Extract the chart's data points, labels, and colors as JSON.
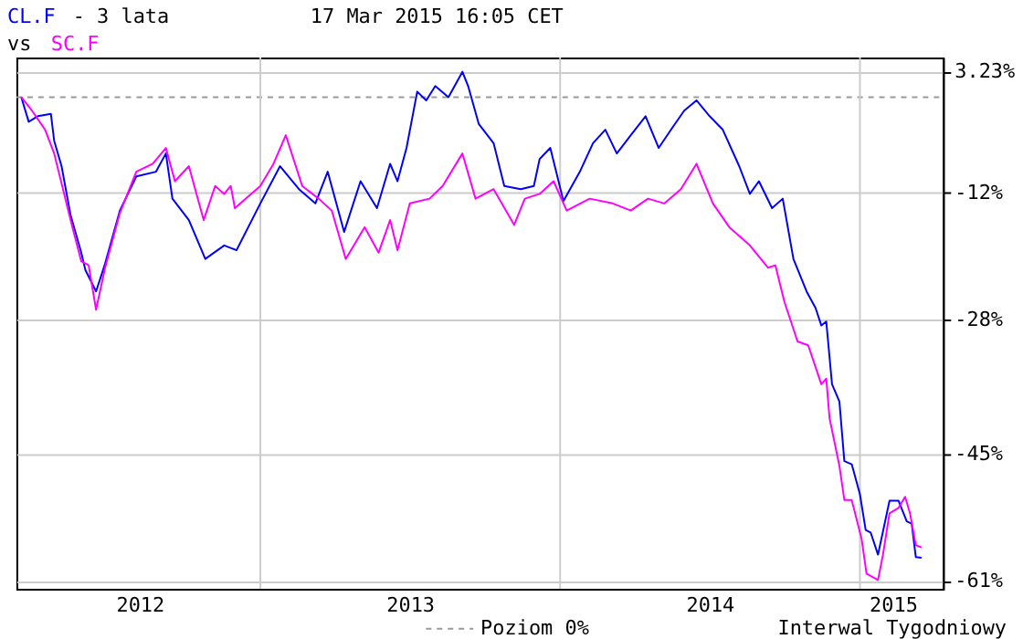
{
  "chart_data": {
    "type": "line",
    "title": "- 3 lata",
    "annotations": [
      "17 Mar 2015 16:05 CET",
      "vs",
      "Interwal Tygodniowy"
    ],
    "xlim": [
      "2012-03-10",
      "2015-04-12"
    ],
    "xticks": [
      {
        "value": "2012-08-07",
        "label": "2012"
      },
      {
        "value": "2013-07-02",
        "label": "2013"
      },
      {
        "value": "2014-07-02",
        "label": "2014"
      },
      {
        "value": "2015-02-10",
        "label": "2015"
      }
    ],
    "ylim": [
      -62,
      5
    ],
    "yticks": [
      {
        "value": 3.23,
        "label": "3.23%"
      },
      {
        "value": -12,
        "label": "-12%"
      },
      {
        "value": -28,
        "label": "-28%"
      },
      {
        "value": -45,
        "label": "-45%"
      },
      {
        "value": -61,
        "label": "-61%"
      }
    ],
    "grid": "y",
    "legend": "bottom",
    "line_style": "solid",
    "ref_lines": [
      {
        "axis": "y",
        "value": 0,
        "label": "Poziom 0%",
        "color": "#999999",
        "line_style": "dashed"
      },
      {
        "axis": "x",
        "value": "2013-01-01",
        "label": null,
        "color": "#cccccc"
      },
      {
        "axis": "x",
        "value": "2014-01-01",
        "label": null,
        "color": "#cccccc"
      },
      {
        "axis": "x",
        "value": "2015-01-01",
        "label": null,
        "color": "#cccccc"
      }
    ],
    "series": [
      {
        "name": "CL.F",
        "color": "#0000ff",
        "x": [
          "2012-03-16",
          "2012-03-25",
          "2012-04-05",
          "2012-04-21",
          "2012-04-25",
          "2012-05-04",
          "2012-05-15",
          "2012-05-28",
          "2012-06-02",
          "2012-06-15",
          "2012-06-26",
          "2012-07-14",
          "2012-08-03",
          "2012-08-27",
          "2012-09-08",
          "2012-09-16",
          "2012-10-06",
          "2012-10-26",
          "2012-11-18",
          "2012-12-03",
          "2013-01-01",
          "2013-01-25",
          "2013-02-17",
          "2013-03-09",
          "2013-03-24",
          "2013-04-13",
          "2013-05-03",
          "2013-05-23",
          "2013-06-08",
          "2013-06-17",
          "2013-06-28",
          "2013-07-11",
          "2013-07-22",
          "2013-08-02",
          "2013-08-18",
          "2013-09-04",
          "2013-09-11",
          "2013-09-24",
          "2013-10-12",
          "2013-10-25",
          "2013-11-14",
          "2013-11-30",
          "2013-12-07",
          "2013-12-20",
          "2014-01-05",
          "2014-01-25",
          "2014-02-10",
          "2014-02-25",
          "2014-03-11",
          "2014-03-28",
          "2014-04-15",
          "2014-05-01",
          "2014-05-16",
          "2014-06-01",
          "2014-06-16",
          "2014-07-02",
          "2014-07-18",
          "2014-08-07",
          "2014-08-20",
          "2014-08-31",
          "2014-09-16",
          "2014-09-29",
          "2014-10-12",
          "2014-10-28",
          "2014-11-08",
          "2014-11-15",
          "2014-11-21",
          "2014-11-28",
          "2014-12-07",
          "2014-12-13",
          "2014-12-22",
          "2015-01-01",
          "2015-01-08",
          "2015-01-14",
          "2015-01-23",
          "2015-02-06",
          "2015-02-17",
          "2015-02-27",
          "2015-03-05",
          "2015-03-10",
          "2015-03-17"
        ],
        "values": [
          0,
          -3.1,
          -2.4,
          -2.1,
          -5.5,
          -8.7,
          -14.9,
          -19.6,
          -21.8,
          -24.5,
          -21.0,
          -14.3,
          -10.0,
          -9.4,
          -7.1,
          -12.8,
          -15.5,
          -20.4,
          -18.7,
          -19.3,
          -13.4,
          -8.7,
          -11.6,
          -13.4,
          -9.4,
          -17.0,
          -10.6,
          -14.0,
          -8.4,
          -10.6,
          -6.4,
          0.7,
          -0.4,
          1.4,
          0,
          3.2,
          1.4,
          -3.4,
          -5.8,
          -11.2,
          -11.6,
          -11.2,
          -7.8,
          -6.4,
          -13.1,
          -9.4,
          -5.8,
          -4.1,
          -7.1,
          -4.8,
          -2.4,
          -6.4,
          -4.1,
          -1.7,
          -0.4,
          -2.4,
          -4.1,
          -8.7,
          -12.2,
          -10.6,
          -14.0,
          -12.8,
          -20.4,
          -24.5,
          -26.6,
          -28.8,
          -28.3,
          -36.2,
          -38.4,
          -45.9,
          -46.3,
          -50.1,
          -54.6,
          -54.9,
          -57.7,
          -50.9,
          -50.9,
          -53.5,
          -53.8,
          -58.0,
          -58.1
        ]
      },
      {
        "name": "SC.F",
        "color": "#ff00ff",
        "x": [
          "2012-03-16",
          "2012-03-29",
          "2012-04-14",
          "2012-04-25",
          "2012-05-15",
          "2012-05-28",
          "2012-06-06",
          "2012-06-15",
          "2012-06-26",
          "2012-07-14",
          "2012-08-03",
          "2012-08-23",
          "2012-09-08",
          "2012-09-19",
          "2012-10-06",
          "2012-10-24",
          "2012-11-07",
          "2012-11-18",
          "2012-11-26",
          "2012-12-01",
          "2013-01-01",
          "2013-01-17",
          "2013-02-01",
          "2013-02-21",
          "2013-03-13",
          "2013-03-29",
          "2013-04-15",
          "2013-05-08",
          "2013-05-25",
          "2013-06-08",
          "2013-06-17",
          "2013-07-02",
          "2013-07-26",
          "2013-08-11",
          "2013-09-04",
          "2013-09-20",
          "2013-10-12",
          "2013-11-06",
          "2013-11-19",
          "2013-12-07",
          "2013-12-24",
          "2014-01-09",
          "2014-02-06",
          "2014-03-06",
          "2014-03-28",
          "2014-04-18",
          "2014-05-08",
          "2014-05-28",
          "2014-06-16",
          "2014-07-06",
          "2014-07-26",
          "2014-08-20",
          "2014-09-11",
          "2014-09-20",
          "2014-10-01",
          "2014-10-17",
          "2014-10-30",
          "2014-11-15",
          "2014-11-21",
          "2014-11-25",
          "2014-12-07",
          "2014-12-13",
          "2014-12-22",
          "2015-01-03",
          "2015-01-09",
          "2015-01-23",
          "2015-01-29",
          "2015-02-06",
          "2015-02-17",
          "2015-02-25",
          "2015-03-03",
          "2015-03-10",
          "2015-03-17"
        ],
        "values": [
          0,
          -1.7,
          -4.1,
          -7.1,
          -15.5,
          -20.7,
          -21.2,
          -26.8,
          -21.5,
          -14.6,
          -9.4,
          -8.4,
          -6.4,
          -10.6,
          -8.7,
          -15.5,
          -11.2,
          -12.2,
          -11.2,
          -14.0,
          -11.2,
          -8.4,
          -4.8,
          -11.2,
          -12.8,
          -14.3,
          -20.4,
          -16.4,
          -19.6,
          -15.5,
          -19.3,
          -13.4,
          -12.8,
          -11.2,
          -7.1,
          -12.8,
          -11.6,
          -16.1,
          -12.8,
          -12.2,
          -10.6,
          -14.3,
          -12.8,
          -13.4,
          -14.3,
          -12.8,
          -13.4,
          -11.6,
          -8.4,
          -13.4,
          -16.4,
          -18.7,
          -21.5,
          -21.2,
          -25.8,
          -30.8,
          -31.3,
          -36.2,
          -35.5,
          -40.5,
          -46.5,
          -50.8,
          -50.8,
          -55.7,
          -60.1,
          -60.9,
          -57.7,
          -52.5,
          -51.8,
          -50.4,
          -52.5,
          -56.5,
          -56.8
        ]
      }
    ]
  }
}
